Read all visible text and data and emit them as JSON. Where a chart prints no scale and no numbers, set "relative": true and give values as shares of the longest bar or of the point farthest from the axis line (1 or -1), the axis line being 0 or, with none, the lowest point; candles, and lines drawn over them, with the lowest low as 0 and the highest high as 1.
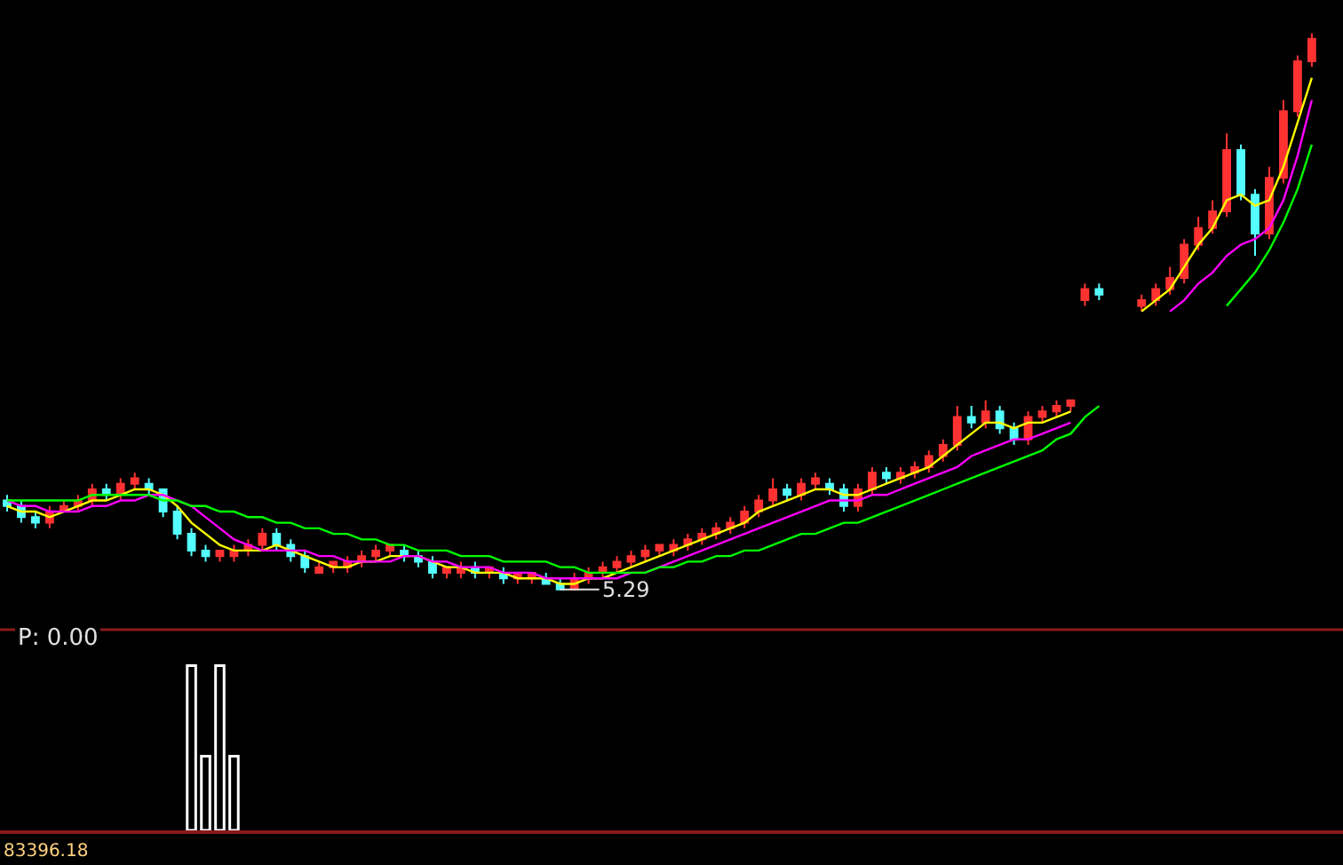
{
  "chart_data": [
    {
      "type": "candlestick",
      "relative": true,
      "grid": false,
      "categories": [
        null,
        null,
        null,
        null,
        null,
        null,
        null,
        null,
        null,
        null,
        null,
        null,
        null,
        null,
        null,
        null,
        null,
        null,
        null,
        null,
        null,
        null,
        null,
        null,
        null,
        null,
        null,
        null,
        null,
        null,
        null,
        null,
        null,
        null,
        null,
        null,
        null,
        null,
        null,
        null,
        null,
        null,
        null,
        null,
        null,
        null,
        null,
        null,
        null,
        null,
        null,
        null,
        null,
        null,
        null,
        null,
        null,
        null,
        null,
        null,
        null,
        null,
        null,
        null,
        null,
        null,
        null,
        null,
        null,
        null,
        null,
        null,
        null,
        null,
        null,
        null,
        null,
        null,
        null,
        null,
        null,
        null,
        null,
        null,
        null,
        null,
        null,
        null,
        null,
        null,
        null,
        null,
        null
      ],
      "ohlc": [
        [
          0.16,
          0.17,
          0.14,
          0.15
        ],
        [
          0.15,
          0.16,
          0.12,
          0.13
        ],
        [
          0.13,
          0.14,
          0.11,
          0.12
        ],
        [
          0.12,
          0.15,
          0.11,
          0.14
        ],
        [
          0.14,
          0.16,
          0.14,
          0.15
        ],
        [
          0.15,
          0.17,
          0.14,
          0.16
        ],
        [
          0.16,
          0.19,
          0.15,
          0.18
        ],
        [
          0.18,
          0.19,
          0.16,
          0.17
        ],
        [
          0.17,
          0.2,
          0.16,
          0.19
        ],
        [
          0.19,
          0.21,
          0.18,
          0.2
        ],
        [
          0.19,
          0.2,
          0.17,
          0.18
        ],
        [
          0.18,
          0.18,
          0.13,
          0.14
        ],
        [
          0.14,
          0.15,
          0.09,
          0.1
        ],
        [
          0.1,
          0.11,
          0.06,
          0.07
        ],
        [
          0.07,
          0.08,
          0.05,
          0.06
        ],
        [
          0.06,
          0.07,
          0.05,
          0.07
        ],
        [
          0.06,
          0.08,
          0.05,
          0.07
        ],
        [
          0.07,
          0.09,
          0.06,
          0.08
        ],
        [
          0.08,
          0.11,
          0.07,
          0.1
        ],
        [
          0.1,
          0.11,
          0.07,
          0.08
        ],
        [
          0.08,
          0.09,
          0.05,
          0.06
        ],
        [
          0.06,
          0.07,
          0.03,
          0.04
        ],
        [
          0.04,
          0.05,
          0.03,
          0.03
        ],
        [
          0.04,
          0.05,
          0.03,
          0.05
        ],
        [
          0.04,
          0.06,
          0.03,
          0.05
        ],
        [
          0.05,
          0.07,
          0.04,
          0.06
        ],
        [
          0.06,
          0.08,
          0.05,
          0.07
        ],
        [
          0.07,
          0.08,
          0.06,
          0.08
        ],
        [
          0.07,
          0.08,
          0.05,
          0.06
        ],
        [
          0.06,
          0.07,
          0.04,
          0.05
        ],
        [
          0.05,
          0.06,
          0.02,
          0.03
        ],
        [
          0.03,
          0.04,
          0.02,
          0.04
        ],
        [
          0.03,
          0.05,
          0.02,
          0.04
        ],
        [
          0.04,
          0.05,
          0.02,
          0.03
        ],
        [
          0.03,
          0.04,
          0.02,
          0.04
        ],
        [
          0.03,
          0.04,
          0.01,
          0.02
        ],
        [
          0.02,
          0.03,
          0.01,
          0.03
        ],
        [
          0.02,
          0.03,
          0.01,
          0.03
        ],
        [
          0.02,
          0.03,
          0.01,
          0.01
        ],
        [
          0.01,
          0.02,
          0,
          0
        ],
        [
          0,
          0.03,
          0,
          0.02
        ],
        [
          0.02,
          0.04,
          0.01,
          0.03
        ],
        [
          0.03,
          0.05,
          0.02,
          0.04
        ],
        [
          0.04,
          0.06,
          0.03,
          0.05
        ],
        [
          0.05,
          0.07,
          0.04,
          0.06
        ],
        [
          0.06,
          0.08,
          0.05,
          0.07
        ],
        [
          0.07,
          0.08,
          0.06,
          0.08
        ],
        [
          0.07,
          0.09,
          0.06,
          0.08
        ],
        [
          0.08,
          0.1,
          0.07,
          0.09
        ],
        [
          0.09,
          0.11,
          0.08,
          0.1
        ],
        [
          0.1,
          0.12,
          0.09,
          0.11
        ],
        [
          0.11,
          0.13,
          0.1,
          0.12
        ],
        [
          0.12,
          0.15,
          0.11,
          0.14
        ],
        [
          0.14,
          0.17,
          0.13,
          0.16
        ],
        [
          0.16,
          0.2,
          0.15,
          0.18
        ],
        [
          0.18,
          0.19,
          0.16,
          0.17
        ],
        [
          0.17,
          0.2,
          0.16,
          0.19
        ],
        [
          0.19,
          0.21,
          0.18,
          0.2
        ],
        [
          0.19,
          0.2,
          0.17,
          0.18
        ],
        [
          0.18,
          0.19,
          0.14,
          0.15
        ],
        [
          0.15,
          0.19,
          0.14,
          0.18
        ],
        [
          0.18,
          0.22,
          0.17,
          0.21
        ],
        [
          0.21,
          0.22,
          0.19,
          0.2
        ],
        [
          0.2,
          0.22,
          0.19,
          0.21
        ],
        [
          0.21,
          0.23,
          0.2,
          0.22
        ],
        [
          0.22,
          0.25,
          0.21,
          0.24
        ],
        [
          0.24,
          0.27,
          0.23,
          0.26
        ],
        [
          0.26,
          0.33,
          0.25,
          0.31
        ],
        [
          0.31,
          0.33,
          0.29,
          0.3
        ],
        [
          0.3,
          0.34,
          0.29,
          0.32
        ],
        [
          0.32,
          0.33,
          0.28,
          0.29
        ],
        [
          0.29,
          0.3,
          0.26,
          0.27
        ],
        [
          0.27,
          0.32,
          0.26,
          0.31
        ],
        [
          0.31,
          0.33,
          0.3,
          0.32
        ],
        [
          0.32,
          0.34,
          0.31,
          0.33
        ],
        [
          0.33,
          0.34,
          0.32,
          0.34
        ],
        [
          0.52,
          0.55,
          0.51,
          0.54
        ],
        [
          0.54,
          0.55,
          0.52,
          0.53
        ],
        null,
        null,
        [
          0.51,
          0.53,
          0.5,
          0.52
        ],
        [
          0.52,
          0.55,
          0.51,
          0.54
        ],
        [
          0.54,
          0.58,
          0.53,
          0.56
        ],
        [
          0.56,
          0.63,
          0.55,
          0.62
        ],
        [
          0.62,
          0.67,
          0.61,
          0.65
        ],
        [
          0.65,
          0.7,
          0.64,
          0.68
        ],
        [
          0.68,
          0.82,
          0.67,
          0.79
        ],
        [
          0.79,
          0.8,
          0.7,
          0.71
        ],
        [
          0.71,
          0.72,
          0.6,
          0.64
        ],
        [
          0.64,
          0.76,
          0.63,
          0.74
        ],
        [
          0.74,
          0.88,
          0.73,
          0.86
        ],
        [
          0.86,
          0.96,
          0.85,
          0.95
        ],
        [
          0.95,
          1,
          0.94,
          0.99
        ]
      ],
      "colors": [
        "#54ffff",
        "#54ffff",
        "#54ffff",
        "#ff3232",
        "#ff3232",
        "#ff3232",
        "#ff3232",
        "#54ffff",
        "#ff3232",
        "#ff3232",
        "#54ffff",
        "#54ffff",
        "#54ffff",
        "#54ffff",
        "#54ffff",
        "#ff3232",
        "#ff3232",
        "#ff3232",
        "#ff3232",
        "#54ffff",
        "#54ffff",
        "#54ffff",
        "#ff3232",
        "#ff3232",
        "#ff3232",
        "#ff3232",
        "#ff3232",
        "#ff3232",
        "#54ffff",
        "#54ffff",
        "#54ffff",
        "#ff3232",
        "#ff3232",
        "#54ffff",
        "#ff3232",
        "#54ffff",
        "#ff3232",
        "#ff3232",
        "#54ffff",
        "#54ffff",
        "#ff3232",
        "#ff3232",
        "#ff3232",
        "#ff3232",
        "#ff3232",
        "#ff3232",
        "#ff3232",
        "#ff3232",
        "#ff3232",
        "#ff3232",
        "#ff3232",
        "#ff3232",
        "#ff3232",
        "#ff3232",
        "#ff3232",
        "#54ffff",
        "#ff3232",
        "#ff3232",
        "#54ffff",
        "#54ffff",
        "#ff3232",
        "#ff3232",
        "#54ffff",
        "#ff3232",
        "#ff3232",
        "#ff3232",
        "#ff3232",
        "#ff3232",
        "#54ffff",
        "#ff3232",
        "#54ffff",
        "#54ffff",
        "#ff3232",
        "#ff3232",
        "#ff3232",
        "#ff3232",
        "#ff3232",
        "#54ffff",
        "#ff3232",
        "#ff3232",
        "#ff3232",
        "#ff3232",
        "#ff3232",
        "#ff3232",
        "#ff3232",
        "#ff3232",
        "#ff3232",
        "#54ffff",
        "#54ffff",
        "#ff3232",
        "#ff3232",
        "#ff3232",
        "#ff3232"
      ],
      "series": [
        {
          "type": "line",
          "color": "#ffff00",
          "values": [
            0.15,
            0.14,
            0.14,
            0.13,
            0.14,
            0.15,
            0.16,
            0.16,
            0.17,
            0.18,
            0.18,
            0.17,
            0.15,
            0.12,
            0.1,
            0.08,
            0.07,
            0.07,
            0.07,
            0.08,
            0.07,
            0.06,
            0.05,
            0.04,
            0.04,
            0.05,
            0.05,
            0.06,
            0.06,
            0.06,
            0.05,
            0.04,
            0.04,
            0.03,
            0.03,
            0.03,
            0.02,
            0.02,
            0.02,
            0.01,
            0.01,
            0.02,
            0.02,
            0.03,
            0.04,
            0.05,
            0.06,
            0.07,
            0.08,
            0.09,
            0.1,
            0.11,
            0.12,
            0.14,
            0.15,
            0.16,
            0.17,
            0.18,
            0.18,
            0.17,
            0.17,
            0.18,
            0.19,
            0.2,
            0.21,
            0.22,
            0.24,
            0.26,
            0.28,
            0.3,
            0.3,
            0.29,
            0.3,
            0.3,
            0.31,
            0.32,
            null,
            null,
            null,
            null,
            0.5,
            0.52,
            0.54,
            0.58,
            0.62,
            0.65,
            0.7,
            0.71,
            0.69,
            0.7,
            0.76,
            0.84,
            0.92
          ]
        },
        {
          "type": "line",
          "color": "#ff00ff",
          "values": [
            0.16,
            0.15,
            0.15,
            0.14,
            0.14,
            0.14,
            0.15,
            0.15,
            0.16,
            0.16,
            0.17,
            0.17,
            0.16,
            0.15,
            0.13,
            0.11,
            0.09,
            0.08,
            0.07,
            0.07,
            0.07,
            0.07,
            0.06,
            0.06,
            0.05,
            0.05,
            0.05,
            0.05,
            0.06,
            0.06,
            0.05,
            0.05,
            0.04,
            0.04,
            0.04,
            0.03,
            0.03,
            0.03,
            0.02,
            0.02,
            0.02,
            0.02,
            0.02,
            0.02,
            0.03,
            0.03,
            0.04,
            0.05,
            0.06,
            0.07,
            0.08,
            0.09,
            0.1,
            0.11,
            0.12,
            0.13,
            0.14,
            0.15,
            0.16,
            0.16,
            0.16,
            0.17,
            0.17,
            0.18,
            0.19,
            0.2,
            0.21,
            0.22,
            0.24,
            0.25,
            0.26,
            0.27,
            0.27,
            0.28,
            0.29,
            0.3,
            null,
            null,
            null,
            null,
            null,
            null,
            0.5,
            0.52,
            0.55,
            0.57,
            0.6,
            0.62,
            0.63,
            0.65,
            0.7,
            0.78,
            0.88
          ]
        },
        {
          "type": "line",
          "color": "#00ff00",
          "values": [
            0.16,
            0.16,
            0.16,
            0.16,
            0.16,
            0.16,
            0.17,
            0.17,
            0.17,
            0.17,
            0.17,
            0.16,
            0.16,
            0.15,
            0.15,
            0.14,
            0.14,
            0.13,
            0.13,
            0.12,
            0.12,
            0.11,
            0.11,
            0.1,
            0.1,
            0.09,
            0.09,
            0.08,
            0.08,
            0.07,
            0.07,
            0.07,
            0.06,
            0.06,
            0.06,
            0.05,
            0.05,
            0.05,
            0.05,
            0.04,
            0.04,
            0.03,
            0.03,
            0.03,
            0.03,
            0.03,
            0.04,
            0.04,
            0.05,
            0.05,
            0.06,
            0.06,
            0.07,
            0.07,
            0.08,
            0.09,
            0.1,
            0.1,
            0.11,
            0.12,
            0.12,
            0.13,
            0.14,
            0.15,
            0.16,
            0.17,
            0.18,
            0.19,
            0.2,
            0.21,
            0.22,
            0.23,
            0.24,
            0.25,
            0.27,
            0.28,
            0.31,
            0.33,
            null,
            null,
            null,
            null,
            null,
            null,
            null,
            null,
            0.51,
            0.54,
            0.57,
            0.61,
            0.66,
            0.72,
            0.8
          ]
        }
      ],
      "annotations": [
        "5.29"
      ]
    },
    {
      "type": "bar",
      "relative": true,
      "grid": false,
      "title": "P: 0.00",
      "categories": [
        null,
        null,
        null,
        null,
        null,
        null,
        null,
        null,
        null,
        null,
        null,
        null,
        null,
        null,
        null,
        null,
        null,
        null,
        null,
        null,
        null,
        null,
        null,
        null,
        null,
        null,
        null,
        null,
        null,
        null,
        null,
        null,
        null,
        null,
        null,
        null,
        null,
        null,
        null,
        null,
        null,
        null,
        null,
        null,
        null,
        null,
        null,
        null,
        null,
        null,
        null,
        null,
        null,
        null,
        null,
        null,
        null,
        null,
        null,
        null,
        null,
        null,
        null,
        null,
        null,
        null,
        null,
        null,
        null,
        null,
        null,
        null,
        null,
        null,
        null,
        null,
        null,
        null,
        null,
        null,
        null,
        null,
        null,
        null,
        null,
        null,
        null,
        null,
        null,
        null,
        null,
        null,
        null
      ],
      "values": [
        null,
        null,
        null,
        null,
        null,
        null,
        null,
        null,
        null,
        null,
        null,
        null,
        null,
        1,
        0.45,
        1,
        0.45,
        null,
        null,
        null,
        null,
        null,
        null,
        null,
        null,
        null,
        null,
        null,
        null,
        null,
        null,
        null,
        null,
        null,
        null,
        null,
        null,
        null,
        null,
        null,
        null,
        null,
        null,
        null,
        null,
        null,
        null,
        null,
        null,
        null,
        null,
        null,
        null,
        null,
        null,
        null,
        null,
        null,
        null,
        null,
        null,
        null,
        null,
        null,
        null,
        null,
        null,
        null,
        null,
        null,
        null,
        null,
        null,
        null,
        null,
        null,
        null,
        null,
        null,
        null,
        null,
        null,
        null,
        null,
        null,
        null,
        null,
        null,
        null,
        null,
        null,
        null,
        null
      ],
      "color": "#ffffff",
      "annotations": [
        "83396.18"
      ]
    }
  ]
}
